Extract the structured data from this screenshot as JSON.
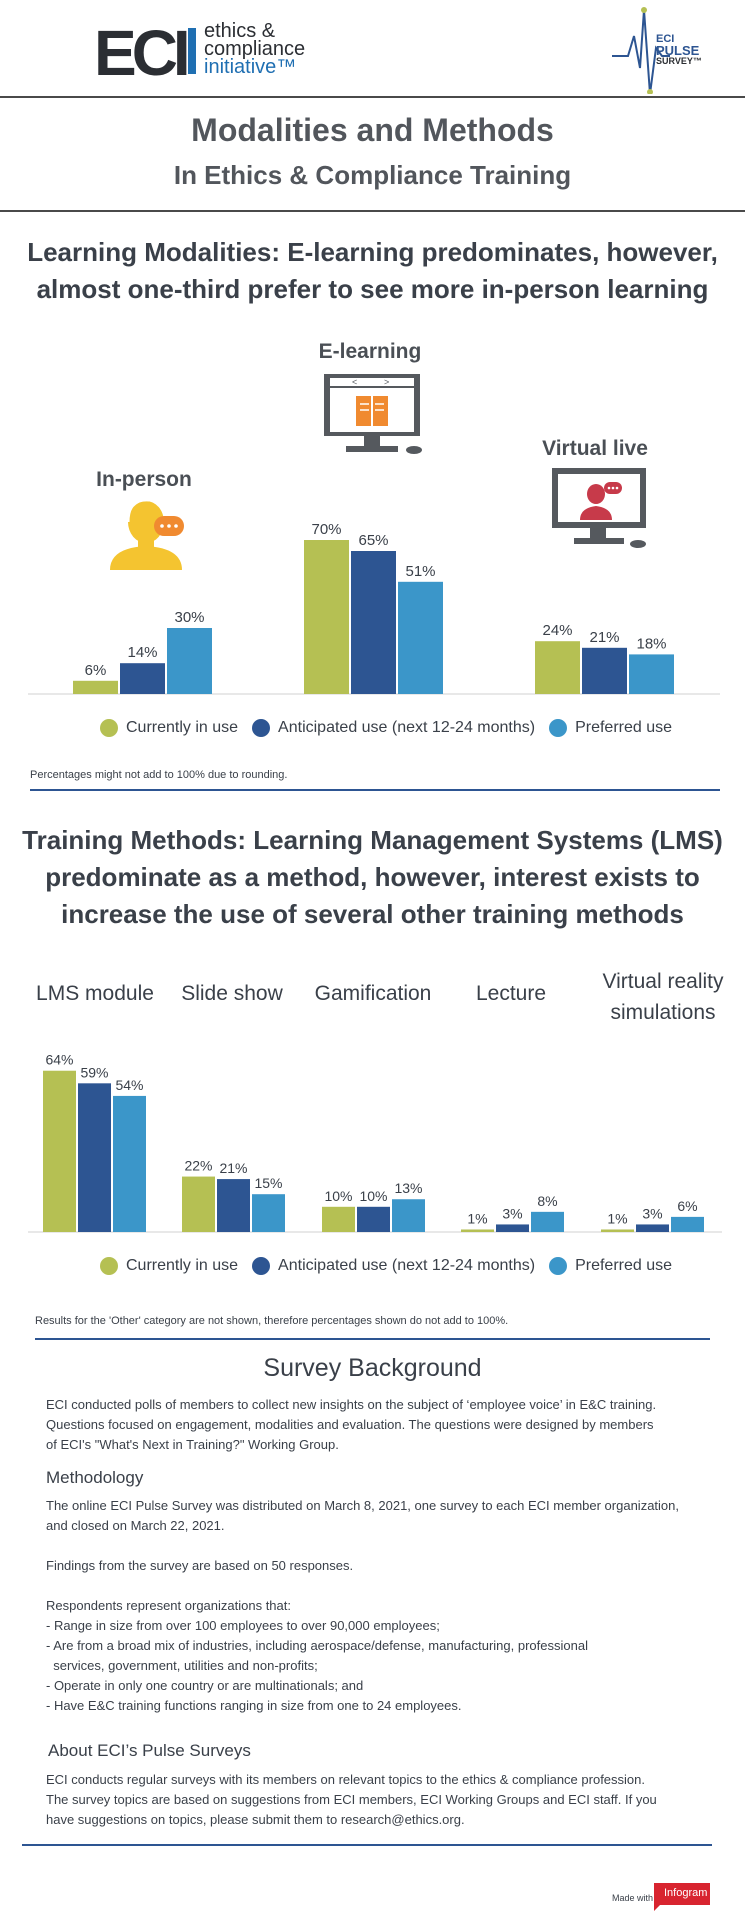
{
  "header": {
    "logo_mark": "ECI",
    "logo_text_line1": "ethics &",
    "logo_text_line2": "compliance",
    "logo_text_line3": "initiative™",
    "pulse_line1": "ECI",
    "pulse_line2": "PULSE",
    "pulse_line3": "SURVEY™"
  },
  "title": {
    "main": "Modalities and Methods",
    "sub": "In Ethics & Compliance Training"
  },
  "colors": {
    "current": "#b5c053",
    "anticipated": "#2d5592",
    "preferred": "#3b96c9",
    "icon_gray": "#55595e",
    "icon_orange": "#f08a30",
    "icon_yellow": "#f4c430",
    "icon_red": "#c73a4a",
    "rule_blue": "#2d5592"
  },
  "section1": {
    "title_line1": "Learning Modalities: E-learning predominates, however,",
    "title_line2": "almost one-third prefer to see more in-person learning",
    "note": "Percentages might not add to 100% due to rounding."
  },
  "section2": {
    "title_line1": "Training Methods: Learning Management Systems (LMS)",
    "title_line2": "predominate as a method, however, interest exists to",
    "title_line3": "increase the use of several other training methods",
    "note": "Results for the 'Other' category are not shown, therefore percentages shown do not add to 100%."
  },
  "legend": {
    "current": "Currently in use",
    "anticipated": "Anticipated use (next 12-24 months)",
    "preferred": "Preferred use"
  },
  "chart_data": [
    {
      "type": "bar",
      "categories": [
        "In-person",
        "E-learning",
        "Virtual live"
      ],
      "series": [
        {
          "name": "Currently in use",
          "values": [
            6,
            70,
            24
          ]
        },
        {
          "name": "Anticipated use (next 12-24 months)",
          "values": [
            14,
            65,
            21
          ]
        },
        {
          "name": "Preferred use",
          "values": [
            30,
            51,
            18
          ]
        }
      ],
      "value_suffix": "%",
      "icons": [
        "person-headset-icon",
        "computer-book-icon",
        "computer-headset-icon"
      ],
      "legend_position": "bottom"
    },
    {
      "type": "bar",
      "categories": [
        "LMS module",
        "Slide show",
        "Gamification",
        "Lecture",
        "Virtual reality simulations"
      ],
      "series": [
        {
          "name": "Currently in use",
          "values": [
            64,
            22,
            10,
            1,
            1
          ]
        },
        {
          "name": "Anticipated use (next 12-24 months)",
          "values": [
            59,
            21,
            10,
            3,
            3
          ]
        },
        {
          "name": "Preferred use",
          "values": [
            54,
            15,
            13,
            8,
            6
          ]
        }
      ],
      "value_suffix": "%",
      "legend_position": "bottom"
    }
  ],
  "background": {
    "title": "Survey Background",
    "intro": [
      "ECI conducted polls of members to collect new insights on the subject of ‘employee voice’ in E&C training.",
      "Questions focused on engagement, modalities and evaluation. The questions were designed by members",
      "of ECI's \"What's Next in Training?\" Working Group."
    ],
    "methodology_title": "Methodology",
    "methodology": [
      "The online ECI Pulse Survey was distributed on March 8, 2021, one survey to each ECI member organization,",
      "and closed on March 22, 2021.",
      "",
      "Findings from the survey are based on 50 responses.",
      "",
      "Respondents represent organizations that:",
      "- Range in size from over 100 employees to over 90,000 employees;",
      "- Are from a broad mix of industries, including aerospace/defense, manufacturing, professional",
      "  services, government, utilities and non-profits;",
      "- Operate in only one country or are multinationals; and",
      "- Have E&C training functions ranging in size from one to 24 employees."
    ],
    "about_title": "About ECI’s Pulse Surveys",
    "about": [
      "ECI conducts regular surveys with its members on relevant topics to the ethics & compliance profession.",
      "The survey topics are based on suggestions from ECI members, ECI Working Groups and ECI staff. If you",
      "have suggestions on topics, please submit them to research@ethics.org."
    ]
  },
  "footer": {
    "made_with": "Made with",
    "brand": "Infogram"
  }
}
